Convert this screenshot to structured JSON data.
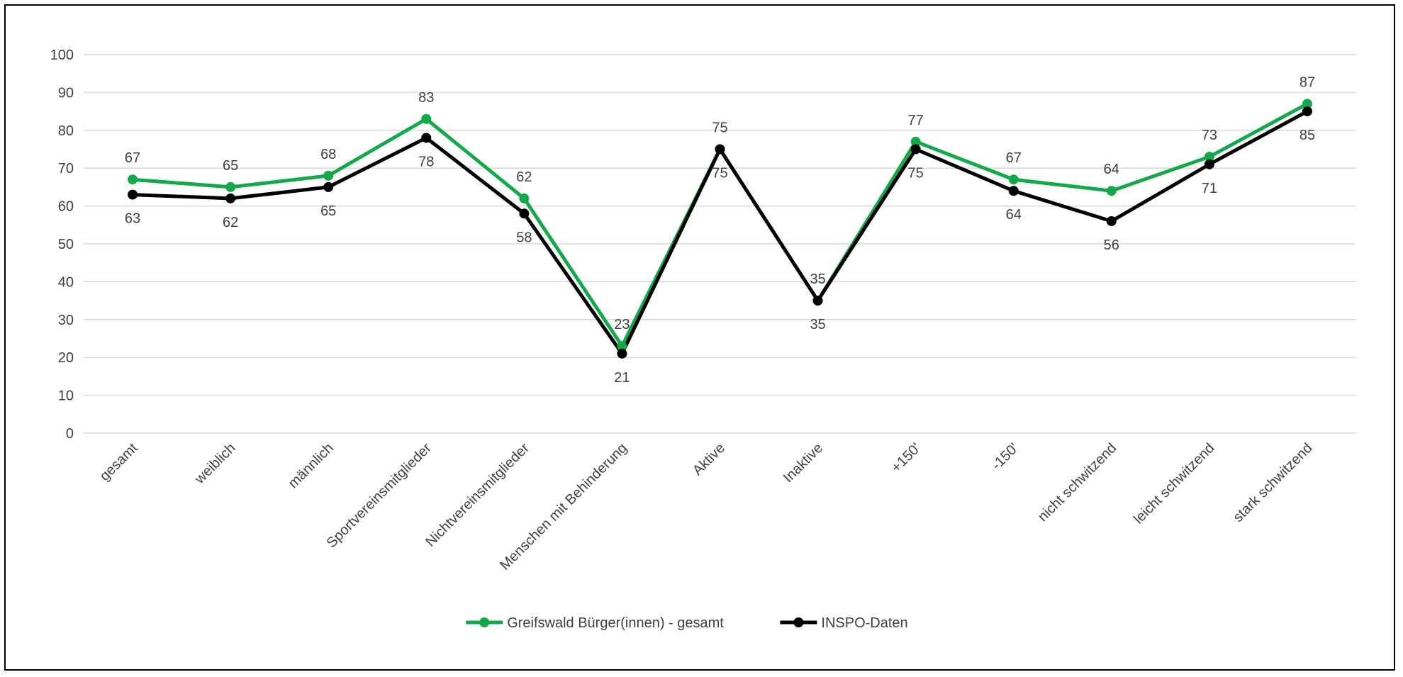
{
  "chart_data": {
    "type": "line",
    "title": "",
    "xlabel": "",
    "ylabel": "",
    "ylim": [
      0,
      100
    ],
    "yticks": [
      0,
      10,
      20,
      30,
      40,
      50,
      60,
      70,
      80,
      90,
      100
    ],
    "grid": true,
    "legend_position": "bottom",
    "categories": [
      "gesamt",
      "weiblich",
      "männlich",
      "Sportvereinsmitglieder",
      "Nichtvereinsmitglieder",
      "Menschen mit Behinderung",
      "Aktive",
      "Inaktive",
      "+150'",
      "-150'",
      "nicht schwitzend",
      "leicht schwitzend",
      "stark schwitzend"
    ],
    "series": [
      {
        "name": "Greifswald Bürger(innen) - gesamt",
        "color": "#13a84a",
        "label_position": "above",
        "values": [
          67,
          65,
          68,
          83,
          62,
          23,
          75,
          35,
          77,
          67,
          64,
          73,
          87
        ]
      },
      {
        "name": "INSPO-Daten",
        "color": "#000000",
        "label_position": "below",
        "values": [
          63,
          62,
          65,
          78,
          58,
          21,
          75,
          35,
          75,
          64,
          56,
          71,
          85
        ]
      }
    ]
  }
}
